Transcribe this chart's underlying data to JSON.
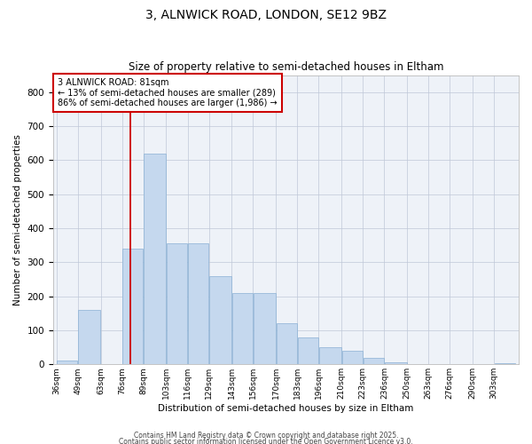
{
  "title_line1": "3, ALNWICK ROAD, LONDON, SE12 9BZ",
  "title_line2": "Size of property relative to semi-detached houses in Eltham",
  "xlabel": "Distribution of semi-detached houses by size in Eltham",
  "ylabel": "Number of semi-detached properties",
  "bar_labels": [
    "36sqm",
    "49sqm",
    "63sqm",
    "76sqm",
    "89sqm",
    "103sqm",
    "116sqm",
    "129sqm",
    "143sqm",
    "156sqm",
    "170sqm",
    "183sqm",
    "196sqm",
    "210sqm",
    "223sqm",
    "236sqm",
    "250sqm",
    "263sqm",
    "276sqm",
    "290sqm",
    "303sqm"
  ],
  "bar_values": [
    10,
    160,
    2,
    340,
    620,
    355,
    355,
    260,
    210,
    210,
    120,
    80,
    50,
    40,
    20,
    5,
    2,
    2,
    2,
    2,
    3
  ],
  "bar_color": "#c5d8ee",
  "bar_edge_color": "#8ab0d4",
  "property_line_x": 81,
  "property_label": "3 ALNWICK ROAD: 81sqm",
  "smaller_pct": "13%",
  "smaller_n": 289,
  "larger_pct": "86%",
  "larger_n": "1,986",
  "annotation_box_color": "#cc0000",
  "line_color": "#cc0000",
  "ylim": [
    0,
    850
  ],
  "yticks": [
    0,
    100,
    200,
    300,
    400,
    500,
    600,
    700,
    800
  ],
  "bg_color": "#eef2f8",
  "footer_line1": "Contains HM Land Registry data © Crown copyright and database right 2025.",
  "footer_line2": "Contains public sector information licensed under the Open Government Licence v3.0."
}
